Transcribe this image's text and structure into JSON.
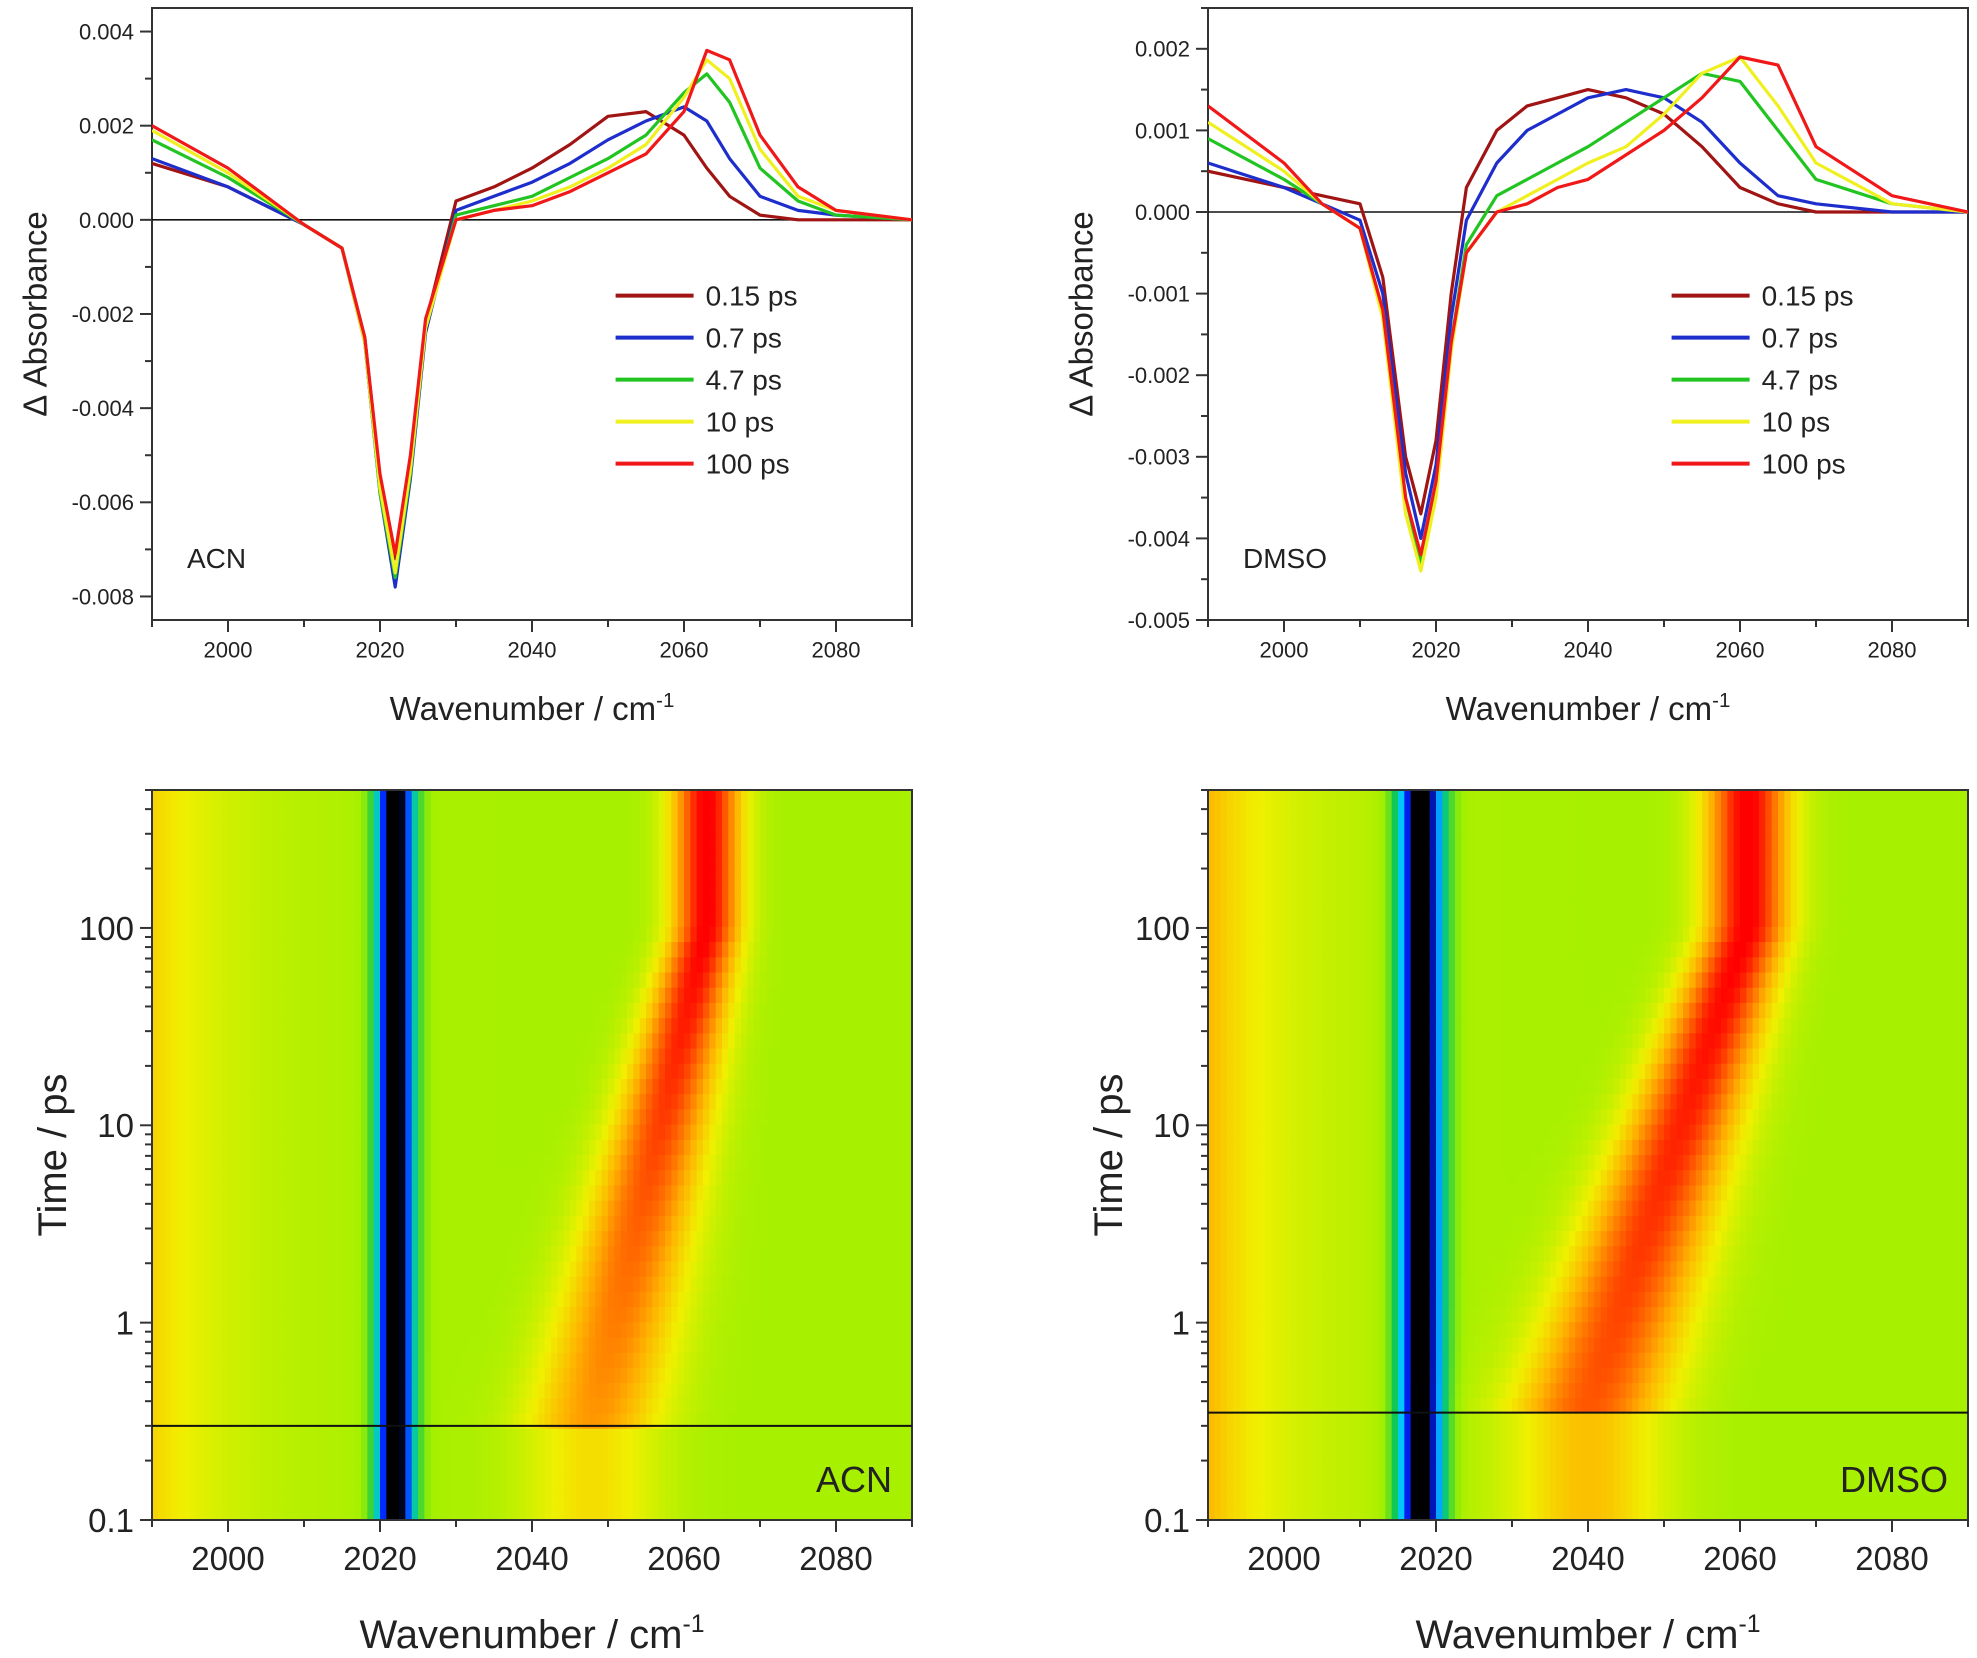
{
  "chart_data": [
    {
      "type": "line",
      "panel": "top-left",
      "title": "",
      "annotation": "ACN",
      "xlabel": "Wavenumber / cm",
      "xlabel_sup": "-1",
      "ylabel": "Δ Absorbance",
      "xlim": [
        1990,
        2090
      ],
      "ylim": [
        -0.0085,
        0.0045
      ],
      "x_ticks": [
        2000,
        2020,
        2040,
        2060,
        2080
      ],
      "x_tick_labels": [
        "2000",
        "2020",
        "2040",
        "2060",
        "2080"
      ],
      "y_ticks": [
        -0.008,
        -0.006,
        -0.004,
        -0.002,
        0.0,
        0.002,
        0.004
      ],
      "y_tick_labels": [
        "-0.008",
        "-0.006",
        "-0.004",
        "-0.002",
        "0.000",
        "0.002",
        "0.004"
      ],
      "zero_line": true,
      "grid": false,
      "legend_position": "bottom-right",
      "series": [
        {
          "name": "0.15 ps",
          "color": "#a01414",
          "x": [
            1990,
            2000,
            2010,
            2015,
            2018,
            2020,
            2022,
            2024,
            2026,
            2030,
            2035,
            2040,
            2045,
            2050,
            2055,
            2060,
            2063,
            2066,
            2070,
            2075,
            2080,
            2090
          ],
          "y": [
            0.0012,
            0.0007,
            -0.0001,
            -0.0006,
            -0.0025,
            -0.0055,
            -0.0072,
            -0.0052,
            -0.0022,
            0.0004,
            0.0007,
            0.0011,
            0.0016,
            0.0022,
            0.0023,
            0.0018,
            0.0011,
            0.0005,
            0.0001,
            0.0,
            0.0,
            0.0
          ]
        },
        {
          "name": "0.7 ps",
          "color": "#1e2ecc",
          "x": [
            1990,
            2000,
            2010,
            2015,
            2018,
            2020,
            2022,
            2024,
            2026,
            2030,
            2035,
            2040,
            2045,
            2050,
            2055,
            2060,
            2063,
            2066,
            2070,
            2075,
            2080,
            2090
          ],
          "y": [
            0.0013,
            0.0007,
            -0.0001,
            -0.0006,
            -0.0026,
            -0.0058,
            -0.0078,
            -0.0055,
            -0.0024,
            0.0002,
            0.0005,
            0.0008,
            0.0012,
            0.0017,
            0.0021,
            0.0024,
            0.0021,
            0.0013,
            0.0005,
            0.0002,
            0.0001,
            0.0
          ]
        },
        {
          "name": "4.7 ps",
          "color": "#22c422",
          "x": [
            1990,
            2000,
            2010,
            2015,
            2018,
            2020,
            2022,
            2024,
            2026,
            2030,
            2035,
            2040,
            2045,
            2050,
            2055,
            2060,
            2063,
            2066,
            2070,
            2075,
            2080,
            2090
          ],
          "y": [
            0.0017,
            0.0009,
            -0.0001,
            -0.0006,
            -0.0026,
            -0.0058,
            -0.0076,
            -0.0054,
            -0.0023,
            0.0001,
            0.0003,
            0.0005,
            0.0009,
            0.0013,
            0.0018,
            0.0027,
            0.0031,
            0.0025,
            0.0011,
            0.0004,
            0.0001,
            0.0
          ]
        },
        {
          "name": "10 ps",
          "color": "#f0f020",
          "x": [
            1990,
            2000,
            2010,
            2015,
            2018,
            2020,
            2022,
            2024,
            2026,
            2030,
            2035,
            2040,
            2045,
            2050,
            2055,
            2060,
            2063,
            2066,
            2070,
            2075,
            2080,
            2090
          ],
          "y": [
            0.0019,
            0.001,
            -0.0001,
            -0.0006,
            -0.0026,
            -0.0057,
            -0.0075,
            -0.0053,
            -0.0023,
            0.0,
            0.0002,
            0.0004,
            0.0007,
            0.0011,
            0.0016,
            0.0026,
            0.0034,
            0.003,
            0.0015,
            0.0005,
            0.0002,
            0.0
          ]
        },
        {
          "name": "100 ps",
          "color": "#f01818",
          "x": [
            1990,
            2000,
            2010,
            2015,
            2018,
            2020,
            2022,
            2024,
            2026,
            2030,
            2035,
            2040,
            2045,
            2050,
            2055,
            2060,
            2063,
            2066,
            2070,
            2075,
            2080,
            2090
          ],
          "y": [
            0.002,
            0.0011,
            -0.0001,
            -0.0006,
            -0.0025,
            -0.0054,
            -0.0071,
            -0.005,
            -0.0021,
            0.0,
            0.0002,
            0.0003,
            0.0006,
            0.001,
            0.0014,
            0.0023,
            0.0036,
            0.0034,
            0.0018,
            0.0007,
            0.0002,
            0.0
          ]
        }
      ]
    },
    {
      "type": "line",
      "panel": "top-right",
      "title": "",
      "annotation": "DMSO",
      "xlabel": "Wavenumber / cm",
      "xlabel_sup": "-1",
      "ylabel": "Δ Absorbance",
      "xlim": [
        1990,
        2090
      ],
      "ylim": [
        -0.005,
        0.0025
      ],
      "x_ticks": [
        2000,
        2020,
        2040,
        2060,
        2080
      ],
      "x_tick_labels": [
        "2000",
        "2020",
        "2040",
        "2060",
        "2080"
      ],
      "y_ticks": [
        -0.005,
        -0.004,
        -0.003,
        -0.002,
        -0.001,
        0.0,
        0.001,
        0.002
      ],
      "y_tick_labels": [
        "-0.005",
        "-0.004",
        "-0.003",
        "-0.002",
        "-0.001",
        "0.000",
        "0.001",
        "0.002"
      ],
      "zero_line": true,
      "grid": false,
      "legend_position": "bottom-right",
      "series": [
        {
          "name": "0.15 ps",
          "color": "#a01414",
          "x": [
            1990,
            2000,
            2005,
            2010,
            2013,
            2016,
            2018,
            2020,
            2022,
            2024,
            2028,
            2032,
            2036,
            2040,
            2045,
            2050,
            2055,
            2060,
            2065,
            2070,
            2080,
            2090
          ],
          "y": [
            0.0005,
            0.0003,
            0.0002,
            0.0001,
            -0.0008,
            -0.003,
            -0.0037,
            -0.0028,
            -0.001,
            0.0003,
            0.001,
            0.0013,
            0.0014,
            0.0015,
            0.0014,
            0.0012,
            0.0008,
            0.0003,
            0.0001,
            0.0,
            0.0,
            0.0
          ]
        },
        {
          "name": "0.7 ps",
          "color": "#1e2ecc",
          "x": [
            1990,
            2000,
            2005,
            2010,
            2013,
            2016,
            2018,
            2020,
            2022,
            2024,
            2028,
            2032,
            2036,
            2040,
            2045,
            2050,
            2055,
            2060,
            2065,
            2070,
            2080,
            2090
          ],
          "y": [
            0.0006,
            0.0003,
            0.0001,
            -0.0001,
            -0.001,
            -0.0032,
            -0.004,
            -0.0031,
            -0.0013,
            -0.0001,
            0.0006,
            0.001,
            0.0012,
            0.0014,
            0.0015,
            0.0014,
            0.0011,
            0.0006,
            0.0002,
            0.0001,
            0.0,
            0.0
          ]
        },
        {
          "name": "4.7 ps",
          "color": "#22c422",
          "x": [
            1990,
            2000,
            2005,
            2010,
            2013,
            2016,
            2018,
            2020,
            2022,
            2024,
            2028,
            2032,
            2036,
            2040,
            2045,
            2050,
            2055,
            2060,
            2065,
            2070,
            2080,
            2090
          ],
          "y": [
            0.0009,
            0.0004,
            0.0001,
            -0.0002,
            -0.0012,
            -0.0035,
            -0.0043,
            -0.0034,
            -0.0016,
            -0.0004,
            0.0002,
            0.0004,
            0.0006,
            0.0008,
            0.0011,
            0.0014,
            0.0017,
            0.0016,
            0.001,
            0.0004,
            0.0001,
            0.0
          ]
        },
        {
          "name": "10 ps",
          "color": "#f0f020",
          "x": [
            1990,
            2000,
            2005,
            2010,
            2013,
            2016,
            2018,
            2020,
            2022,
            2024,
            2028,
            2032,
            2036,
            2040,
            2045,
            2050,
            2055,
            2060,
            2065,
            2070,
            2080,
            2090
          ],
          "y": [
            0.0011,
            0.0005,
            0.0001,
            -0.0002,
            -0.0013,
            -0.0037,
            -0.0044,
            -0.0035,
            -0.0017,
            -0.0005,
            0.0,
            0.0002,
            0.0004,
            0.0006,
            0.0008,
            0.0012,
            0.0017,
            0.0019,
            0.0013,
            0.0006,
            0.0001,
            0.0
          ]
        },
        {
          "name": "100 ps",
          "color": "#f01818",
          "x": [
            1990,
            2000,
            2005,
            2010,
            2013,
            2016,
            2018,
            2020,
            2022,
            2024,
            2028,
            2032,
            2036,
            2040,
            2045,
            2050,
            2055,
            2060,
            2065,
            2070,
            2080,
            2090
          ],
          "y": [
            0.0013,
            0.0006,
            0.0001,
            -0.0002,
            -0.0012,
            -0.0035,
            -0.0042,
            -0.0033,
            -0.0016,
            -0.0005,
            0.0,
            0.0001,
            0.0003,
            0.0004,
            0.0007,
            0.001,
            0.0014,
            0.0019,
            0.0018,
            0.0008,
            0.0002,
            0.0
          ]
        }
      ]
    },
    {
      "type": "heatmap",
      "panel": "bottom-left",
      "title": "",
      "annotation": "ACN",
      "xlabel": "Wavenumber / cm",
      "xlabel_sup": "-1",
      "ylabel": "Time / ps",
      "xlim": [
        1990,
        2090
      ],
      "ylim": [
        0.1,
        500
      ],
      "y_scale": "log",
      "x_ticks": [
        2000,
        2020,
        2040,
        2060,
        2080
      ],
      "x_tick_labels": [
        "2000",
        "2020",
        "2040",
        "2060",
        "2080"
      ],
      "y_ticks": [
        0.1,
        1,
        10,
        100
      ],
      "y_tick_labels": [
        "0.1",
        "1",
        "10",
        "100"
      ],
      "hline_time": 0.3,
      "bleach_center": 2022,
      "bleach_width": 2.5,
      "left_edge_positive": 0.35,
      "peak_early": {
        "time": 0.3,
        "center": 2048,
        "width": 9,
        "amplitude": 0.55
      },
      "peak_late": {
        "time": 100,
        "center": 2063,
        "width": 4.5,
        "amplitude": 1.0
      },
      "colormap": [
        "#000000",
        "#0020ff",
        "#00c8ff",
        "#10c850",
        "#a0f000",
        "#f0f000",
        "#ffb000",
        "#ff6000",
        "#ff0000"
      ]
    },
    {
      "type": "heatmap",
      "panel": "bottom-right",
      "title": "",
      "annotation": "DMSO",
      "xlabel": "Wavenumber / cm",
      "xlabel_sup": "-1",
      "ylabel": "Time / ps",
      "xlim": [
        1990,
        2090
      ],
      "ylim": [
        0.1,
        500
      ],
      "y_scale": "log",
      "x_ticks": [
        2000,
        2020,
        2040,
        2060,
        2080
      ],
      "x_tick_labels": [
        "2000",
        "2020",
        "2040",
        "2060",
        "2080"
      ],
      "y_ticks": [
        0.1,
        1,
        10,
        100
      ],
      "y_tick_labels": [
        "0.1",
        "1",
        "10",
        "100"
      ],
      "hline_time": 0.35,
      "bleach_center": 2018,
      "bleach_width": 3.0,
      "left_edge_positive": 0.45,
      "peak_early": {
        "time": 0.35,
        "center": 2040,
        "width": 10,
        "amplitude": 0.75
      },
      "peak_late": {
        "time": 100,
        "center": 2061,
        "width": 5.5,
        "amplitude": 1.0
      },
      "colormap": [
        "#000000",
        "#0020ff",
        "#00c8ff",
        "#10c850",
        "#a0f000",
        "#f0f000",
        "#ffb000",
        "#ff6000",
        "#ff0000"
      ]
    }
  ]
}
